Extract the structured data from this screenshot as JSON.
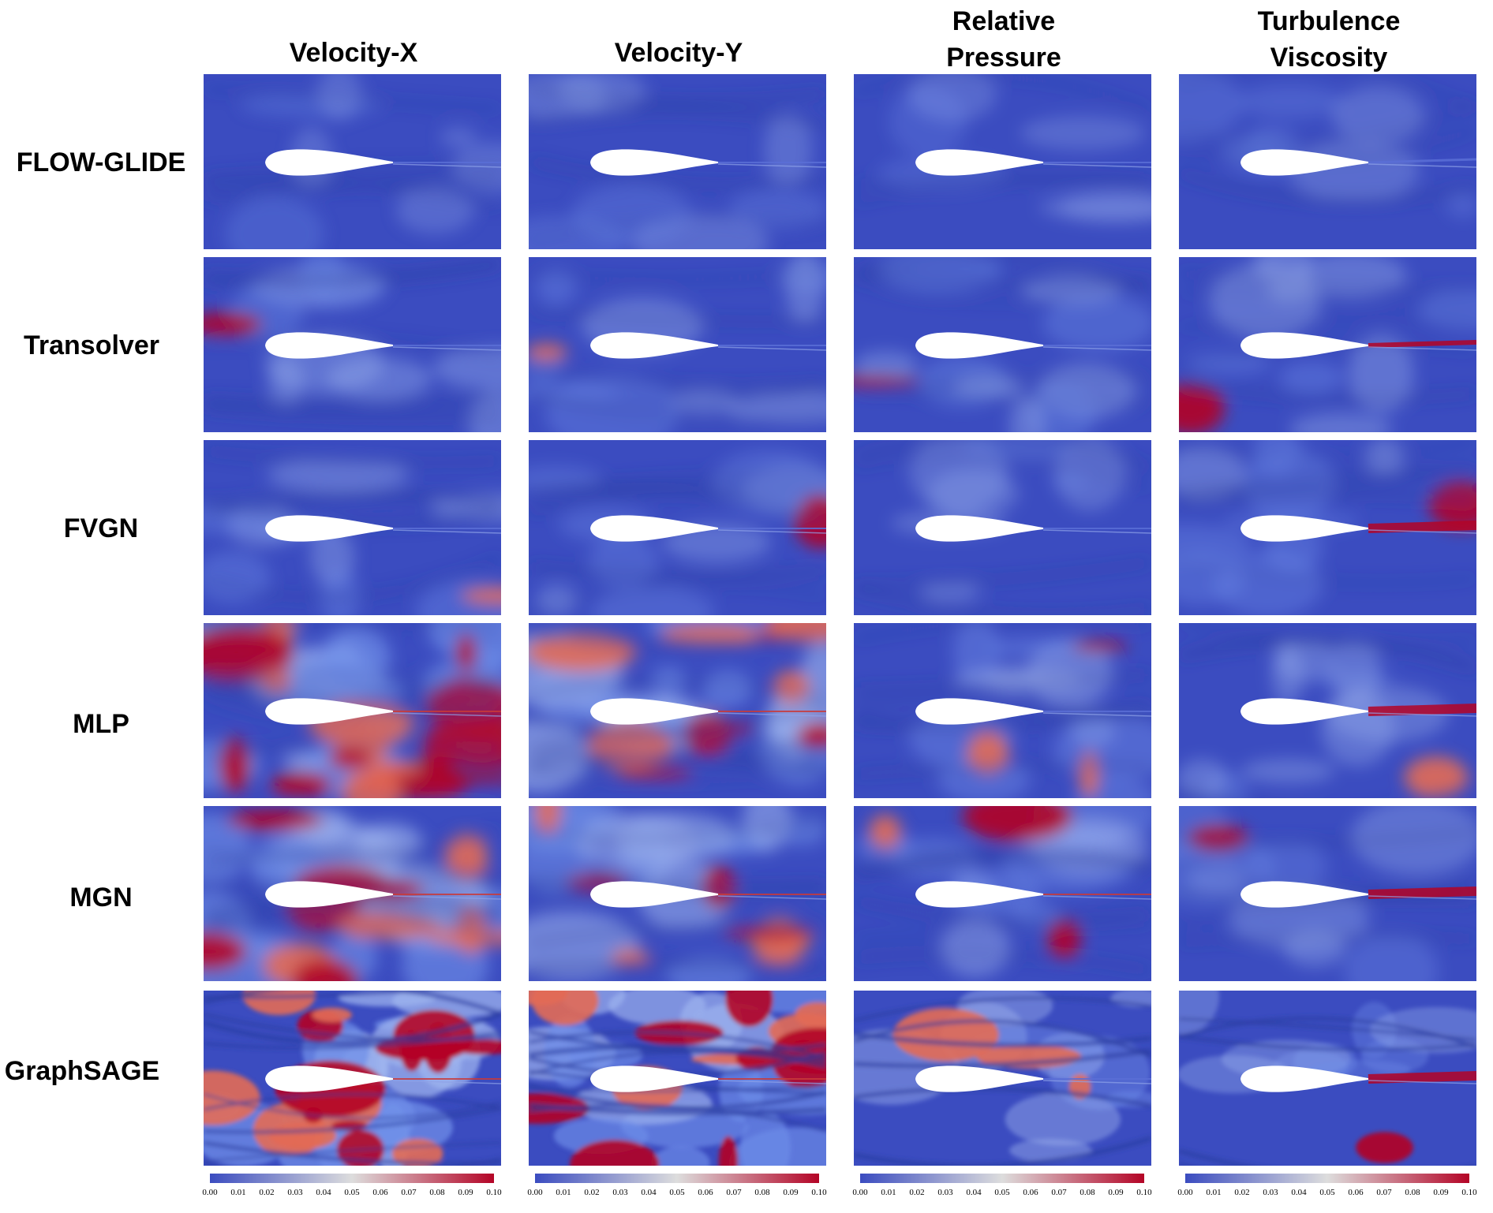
{
  "columns": [
    {
      "line1": "Velocity-X",
      "line2": ""
    },
    {
      "line1": "Velocity-Y",
      "line2": ""
    },
    {
      "line1": "Relative",
      "line2": "Pressure"
    },
    {
      "line1": "Turbulence",
      "line2": "Viscosity"
    }
  ],
  "rows": [
    "FLOW-GLIDE",
    "Transolver",
    "FVGN",
    "MLP",
    "MGN",
    "GraphSAGE"
  ],
  "colorbar": {
    "ticks": [
      "0.00",
      "0.01",
      "0.02",
      "0.03",
      "0.04",
      "0.05",
      "0.06",
      "0.07",
      "0.08",
      "0.09",
      "0.10"
    ],
    "colors": {
      "low": "#3b4cc0",
      "mid": "#dddddd",
      "high": "#b40426"
    }
  },
  "error_levels": [
    [
      0.05,
      0.08,
      0.03,
      0.08
    ],
    [
      0.22,
      0.2,
      0.22,
      0.2
    ],
    [
      0.2,
      0.15,
      0.08,
      0.2
    ],
    [
      0.75,
      0.6,
      0.3,
      0.18
    ],
    [
      0.65,
      0.5,
      0.32,
      0.15
    ],
    [
      0.8,
      0.7,
      0.3,
      0.18
    ]
  ]
}
